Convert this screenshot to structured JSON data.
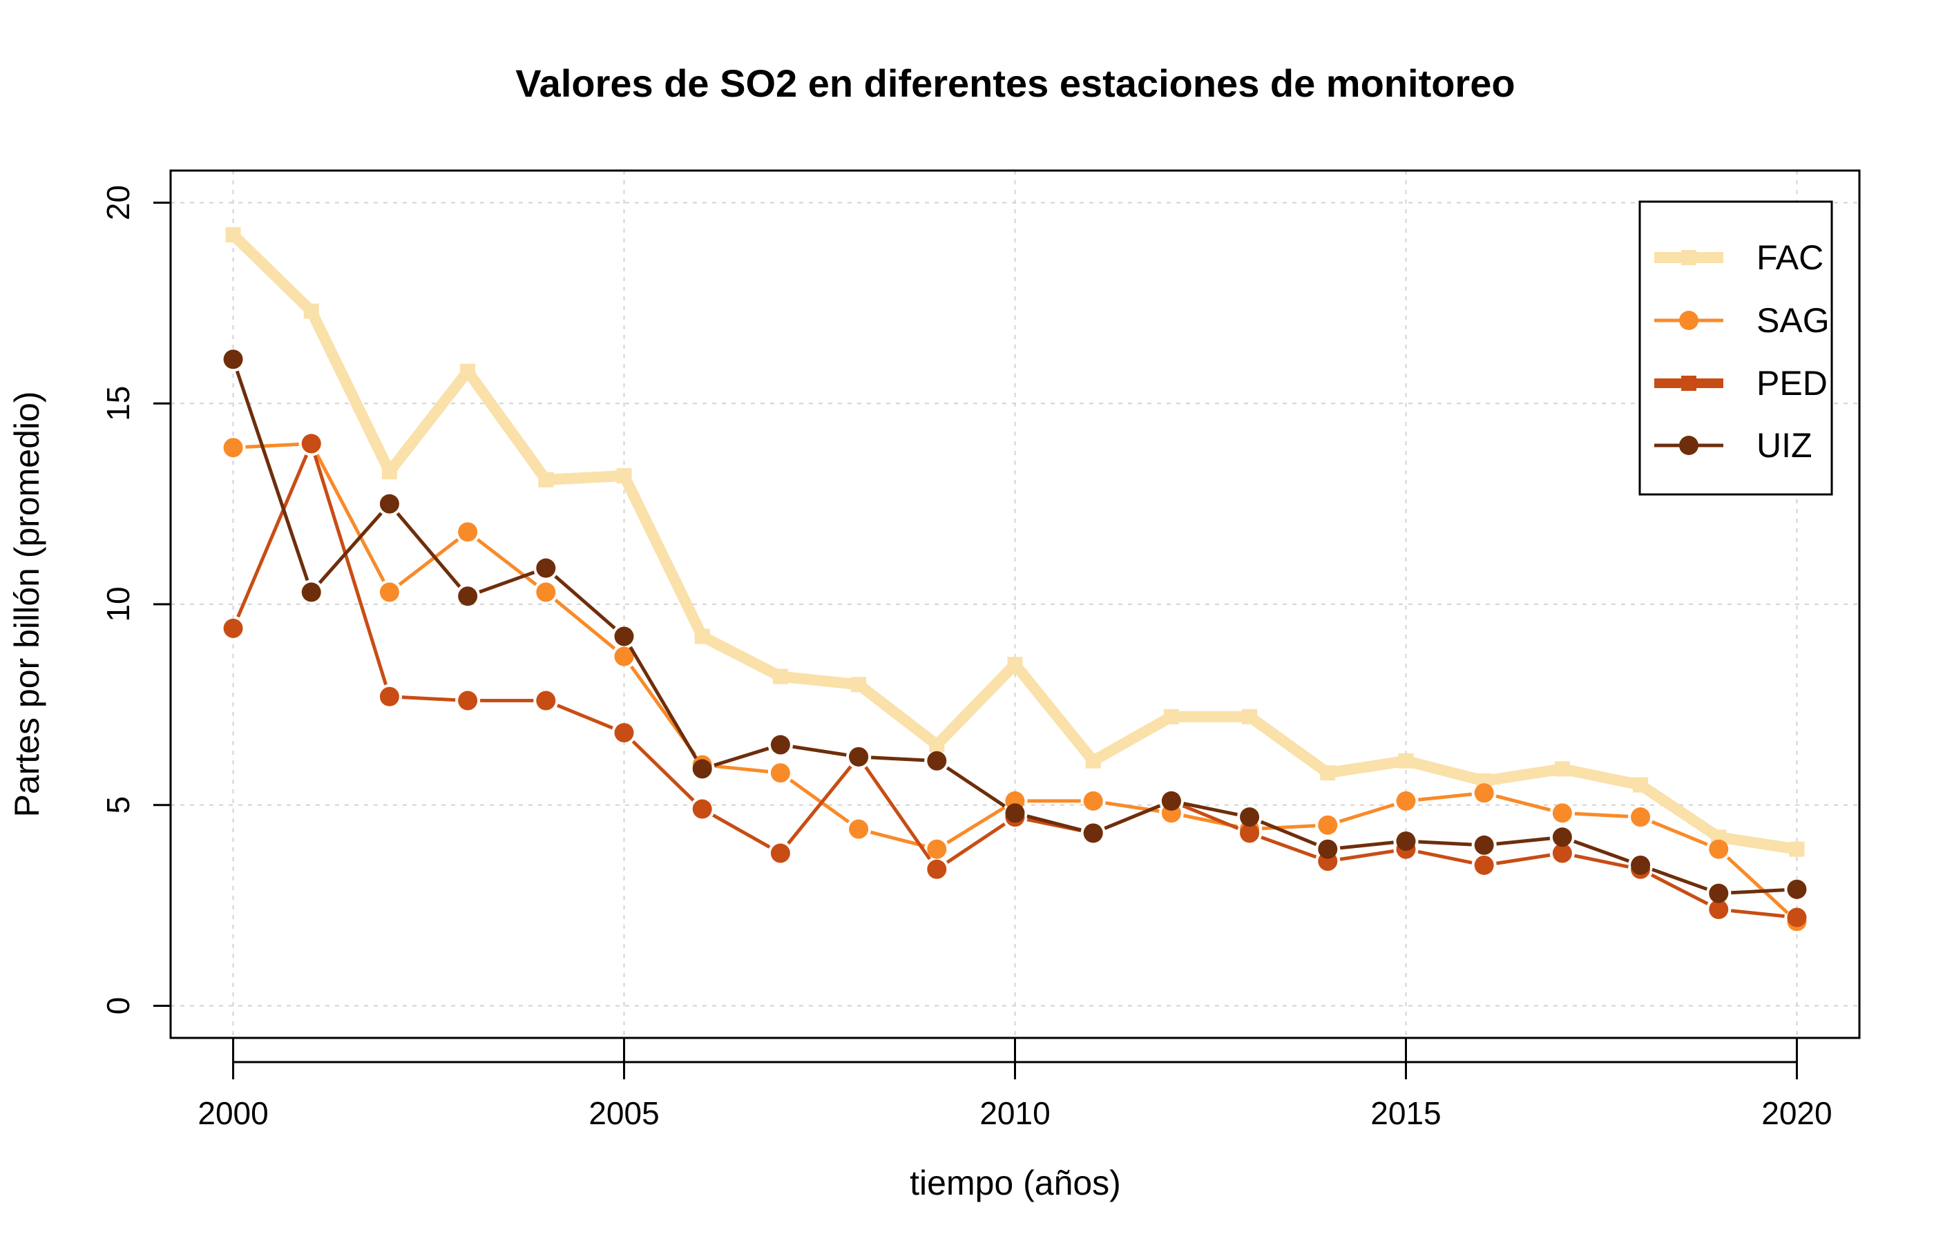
{
  "chart_data": {
    "type": "line",
    "title": "Valores de SO2 en diferentes estaciones de monitoreo",
    "xlabel": "tiempo (años)",
    "ylabel": "Partes por billón (promedio)",
    "xlim": [
      1999.2,
      2020.8
    ],
    "ylim": [
      -0.8,
      20.8
    ],
    "x_ticks": [
      2000,
      2005,
      2010,
      2015,
      2020
    ],
    "y_ticks": [
      0,
      5,
      10,
      15,
      20
    ],
    "grid": true,
    "legend_position": "top-right",
    "x": [
      2000,
      2001,
      2002,
      2003,
      2004,
      2005,
      2006,
      2007,
      2008,
      2009,
      2010,
      2011,
      2012,
      2013,
      2014,
      2015,
      2016,
      2017,
      2018,
      2019,
      2020
    ],
    "series": [
      {
        "name": "FAC",
        "color": "#fae0a9",
        "marker": "square",
        "line_width": 16,
        "values": [
          19.2,
          17.3,
          13.3,
          15.8,
          13.1,
          13.2,
          9.2,
          8.2,
          8.0,
          6.5,
          8.5,
          6.1,
          7.2,
          7.2,
          5.8,
          6.1,
          5.6,
          5.9,
          5.5,
          4.2,
          3.9
        ]
      },
      {
        "name": "SAG",
        "color": "#f98a28",
        "marker": "circle",
        "line_width": 5,
        "values": [
          13.9,
          14.0,
          10.3,
          11.8,
          10.3,
          8.7,
          6.0,
          5.8,
          4.4,
          3.9,
          5.1,
          5.1,
          4.8,
          4.4,
          4.5,
          5.1,
          5.3,
          4.8,
          4.7,
          3.9,
          2.1
        ]
      },
      {
        "name": "PED",
        "color": "#c84d14",
        "marker": "circle",
        "line_width": 5,
        "legend_line_width": 14,
        "legend_marker": "square",
        "values": [
          9.4,
          14.0,
          7.7,
          7.6,
          7.6,
          6.8,
          4.9,
          3.8,
          6.2,
          3.4,
          4.7,
          4.3,
          5.1,
          4.3,
          3.6,
          3.9,
          3.5,
          3.8,
          3.4,
          2.4,
          2.2
        ]
      },
      {
        "name": "UIZ",
        "color": "#6e2e0b",
        "marker": "circle",
        "line_width": 5,
        "values": [
          16.1,
          10.3,
          12.5,
          10.2,
          10.9,
          9.2,
          5.9,
          6.5,
          6.2,
          6.1,
          4.8,
          4.3,
          5.1,
          4.7,
          3.9,
          4.1,
          4.0,
          4.2,
          3.5,
          2.8,
          2.9
        ]
      }
    ]
  }
}
